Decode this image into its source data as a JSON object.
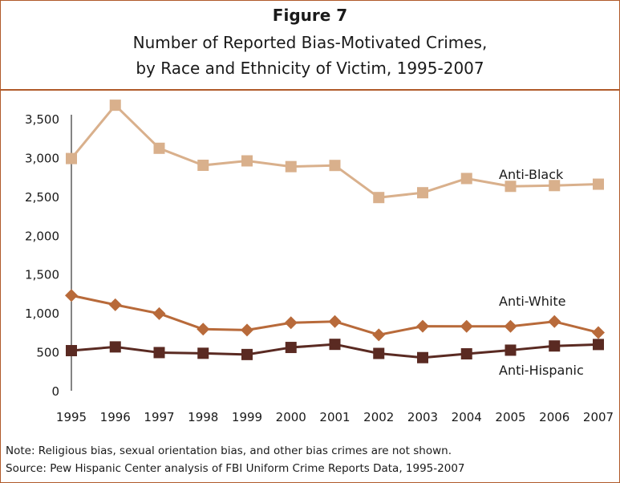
{
  "figure": {
    "label": "Figure 7",
    "title_line1": "Number of Reported Bias-Motivated Crimes,",
    "title_line2": "by Race and Ethnicity of Victim, 1995-2007"
  },
  "colors": {
    "border": "#b05a2a",
    "anti_black": "#d9b08c",
    "anti_white": "#b86a3a",
    "anti_hispanic": "#5a2a22"
  },
  "chart_data": {
    "type": "line",
    "x": [
      "1995",
      "1996",
      "1997",
      "1998",
      "1999",
      "2000",
      "2001",
      "2002",
      "2003",
      "2004",
      "2005",
      "2006",
      "2007"
    ],
    "y_ticks": [
      "0",
      "500",
      "1,000",
      "1,500",
      "2,000",
      "2,500",
      "3,000",
      "3,500"
    ],
    "ylim": [
      0,
      3500
    ],
    "grid": false,
    "series": [
      {
        "name": "Anti-Black",
        "marker": "square",
        "values": [
          2988,
          3674,
          3120,
          2901,
          2958,
          2884,
          2899,
          2486,
          2548,
          2731,
          2630,
          2640,
          2658
        ]
      },
      {
        "name": "Anti-White",
        "marker": "diamond",
        "values": [
          1226,
          1106,
          993,
          792,
          781,
          875,
          891,
          719,
          830,
          829,
          828,
          890,
          749
        ]
      },
      {
        "name": "Anti-Hispanic",
        "marker": "square",
        "values": [
          516,
          564,
          491,
          482,
          466,
          557,
          597,
          480,
          426,
          475,
          522,
          576,
          595
        ]
      }
    ]
  },
  "notes": {
    "note": "Note: Religious bias, sexual orientation bias, and other bias crimes are not shown.",
    "source": "Source:  Pew Hispanic Center analysis of FBI Uniform Crime Reports Data, 1995-2007"
  }
}
